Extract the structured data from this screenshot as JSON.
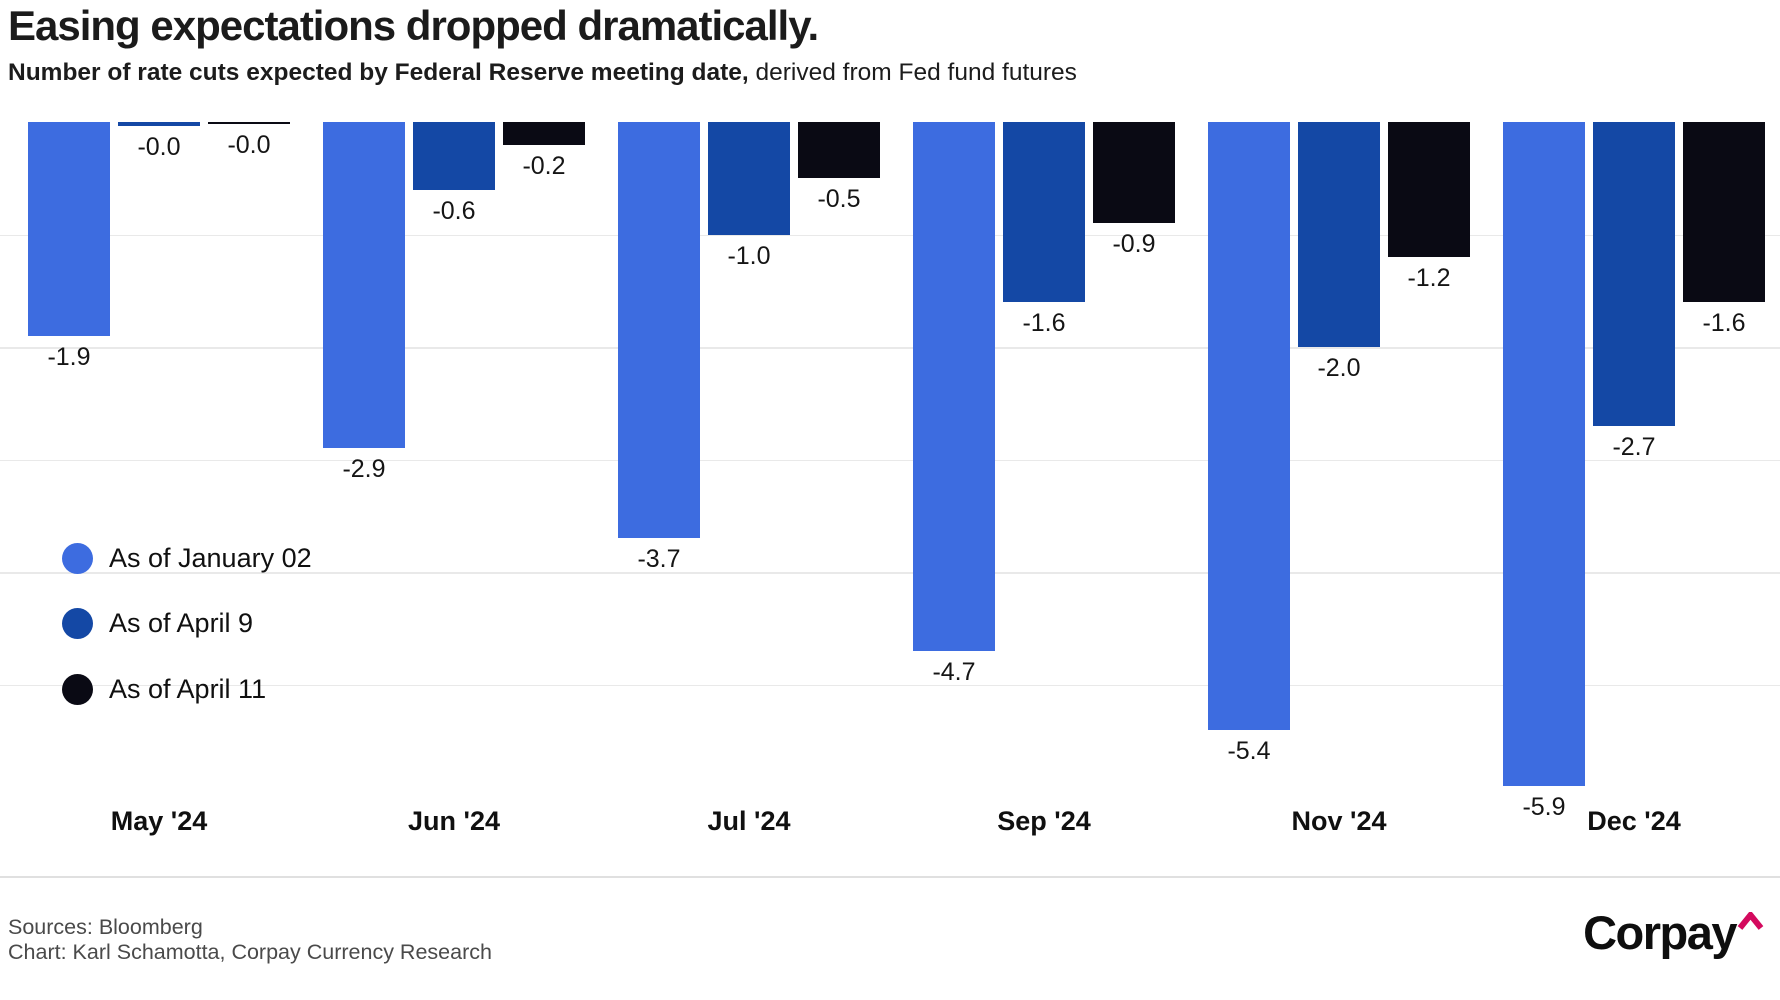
{
  "header": {
    "title": "Easing expectations dropped dramatically.",
    "subtitle_bold": "Number of rate cuts expected by Federal Reserve meeting date,",
    "subtitle_regular": " derived from Fed fund futures"
  },
  "chart_data": {
    "type": "bar",
    "orientation": "vertical-negative",
    "title": "Easing expectations dropped dramatically.",
    "subtitle": "Number of rate cuts expected by Federal Reserve meeting date, derived from Fed fund futures",
    "categories": [
      "May '24",
      "Jun '24",
      "Jul '24",
      "Sep '24",
      "Nov '24",
      "Dec '24"
    ],
    "series": [
      {
        "name": "As of January 02",
        "color": "#3d6ce0",
        "values": [
          -1.9,
          -2.9,
          -3.7,
          -4.7,
          -5.4,
          -5.9
        ],
        "labels": [
          "-1.9",
          "-2.9",
          "-3.7",
          "-4.7",
          "-5.4",
          "-5.9"
        ]
      },
      {
        "name": "As of April 9",
        "color": "#1448a5",
        "values": [
          -0.0,
          -0.6,
          -1.0,
          -1.6,
          -2.0,
          -2.7
        ],
        "labels": [
          "-0.0",
          "-0.6",
          "-1.0",
          "-1.6",
          "-2.0",
          "-2.7"
        ]
      },
      {
        "name": "As of April 11",
        "color": "#0a0a14",
        "values": [
          -0.0,
          -0.2,
          -0.5,
          -0.9,
          -1.2,
          -1.6
        ],
        "labels": [
          "-0.0",
          "-0.2",
          "-0.5",
          "-0.9",
          "-1.2",
          "-1.6"
        ]
      }
    ],
    "ylim": [
      -6.3,
      0
    ],
    "gridlines": [
      -1,
      -2,
      -3,
      -4,
      -5
    ],
    "grid": true,
    "value_labels": "below-bar",
    "legend_position": "left-middle",
    "grid_color": "#e9e9e9"
  },
  "footer": {
    "sources_line": "Sources: Bloomberg",
    "credit_line": "Chart: Karl Schamotta, Corpay Currency Research",
    "logo_text": "Corpay",
    "logo_caret_color": "#d40a5e"
  }
}
